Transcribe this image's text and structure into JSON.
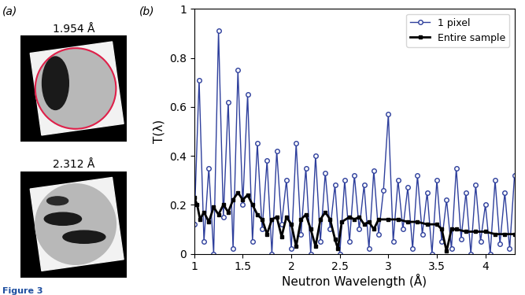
{
  "panel_labels": [
    "(a)",
    "(b)"
  ],
  "caption": "Figure 3",
  "images": [
    {
      "title": "1.954 Å"
    },
    {
      "title": "2.312 Å"
    }
  ],
  "chart_data": {
    "type": "line",
    "xlabel": "Neutron Wavelength (Å)",
    "ylabel": "T(λ)",
    "xlim": [
      1,
      4.3
    ],
    "xticks": [
      1,
      1.5,
      2,
      2.5,
      3,
      3.5,
      4
    ],
    "ylim": [
      0,
      1
    ],
    "yticks": [
      0,
      0.2,
      0.4,
      0.6,
      0.8,
      1
    ],
    "legend": "upper right",
    "series": [
      {
        "name": "1 pixel",
        "color": "#2e3f9c",
        "marker": "circle",
        "line_style": "solid",
        "x": [
          1.0,
          1.05,
          1.1,
          1.15,
          1.2,
          1.25,
          1.3,
          1.35,
          1.4,
          1.45,
          1.5,
          1.55,
          1.6,
          1.65,
          1.7,
          1.75,
          1.8,
          1.85,
          1.9,
          1.95,
          2.0,
          2.05,
          2.1,
          2.15,
          2.2,
          2.25,
          2.3,
          2.35,
          2.4,
          2.45,
          2.5,
          2.55,
          2.6,
          2.65,
          2.7,
          2.75,
          2.8,
          2.85,
          2.9,
          2.95,
          3.0,
          3.05,
          3.1,
          3.15,
          3.2,
          3.25,
          3.3,
          3.35,
          3.4,
          3.45,
          3.5,
          3.55,
          3.6,
          3.65,
          3.7,
          3.75,
          3.8,
          3.85,
          3.9,
          3.95,
          4.0,
          4.05,
          4.1,
          4.15,
          4.2,
          4.25,
          4.3
        ],
        "values": [
          0.12,
          0.71,
          0.05,
          0.35,
          0.0,
          0.91,
          0.15,
          0.62,
          0.02,
          0.75,
          0.2,
          0.65,
          0.05,
          0.45,
          0.1,
          0.38,
          0.0,
          0.42,
          0.12,
          0.3,
          0.02,
          0.45,
          0.08,
          0.35,
          0.0,
          0.4,
          0.05,
          0.33,
          0.1,
          0.28,
          0.0,
          0.3,
          0.05,
          0.32,
          0.1,
          0.28,
          0.02,
          0.34,
          0.08,
          0.26,
          0.57,
          0.05,
          0.3,
          0.1,
          0.27,
          0.02,
          0.32,
          0.08,
          0.25,
          0.0,
          0.3,
          0.05,
          0.22,
          0.02,
          0.35,
          0.06,
          0.25,
          0.0,
          0.28,
          0.05,
          0.2,
          0.0,
          0.3,
          0.04,
          0.25,
          0.02,
          0.32
        ]
      },
      {
        "name": "Entire sample",
        "color": "#000000",
        "marker": "square",
        "line_style": "solid",
        "x": [
          1.0,
          1.03,
          1.06,
          1.1,
          1.15,
          1.2,
          1.25,
          1.3,
          1.35,
          1.4,
          1.45,
          1.5,
          1.55,
          1.6,
          1.65,
          1.7,
          1.75,
          1.8,
          1.85,
          1.9,
          1.95,
          2.0,
          2.05,
          2.1,
          2.15,
          2.2,
          2.25,
          2.3,
          2.35,
          2.4,
          2.45,
          2.48,
          2.52,
          2.6,
          2.65,
          2.7,
          2.75,
          2.8,
          2.85,
          2.9,
          3.0,
          3.1,
          3.2,
          3.3,
          3.4,
          3.5,
          3.55,
          3.6,
          3.65,
          3.7,
          3.8,
          3.9,
          4.0,
          4.1,
          4.2,
          4.3
        ],
        "values": [
          0.23,
          0.2,
          0.14,
          0.17,
          0.13,
          0.19,
          0.16,
          0.2,
          0.17,
          0.22,
          0.25,
          0.22,
          0.24,
          0.2,
          0.16,
          0.14,
          0.08,
          0.14,
          0.15,
          0.07,
          0.15,
          0.12,
          0.03,
          0.14,
          0.16,
          0.1,
          0.03,
          0.14,
          0.17,
          0.14,
          0.06,
          0.02,
          0.13,
          0.15,
          0.14,
          0.15,
          0.12,
          0.13,
          0.1,
          0.14,
          0.14,
          0.14,
          0.13,
          0.13,
          0.12,
          0.12,
          0.1,
          0.01,
          0.1,
          0.1,
          0.09,
          0.09,
          0.09,
          0.08,
          0.08,
          0.08
        ]
      }
    ]
  }
}
